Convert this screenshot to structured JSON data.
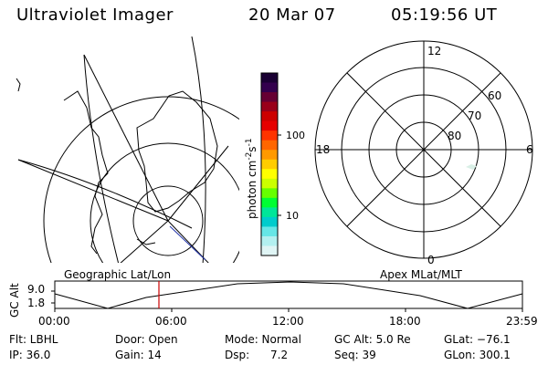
{
  "header": {
    "title": "Ultraviolet Imager",
    "date": "20 Mar 07",
    "time": "05:19:56 UT"
  },
  "colorbar": {
    "unit": "photon cm",
    "unit_exp1": "-2",
    "unit_s": "s",
    "unit_exp2": "-1",
    "ticks": [
      "100",
      "10"
    ],
    "colors": [
      "#1a0033",
      "#33004d",
      "#660033",
      "#99001a",
      "#cc0000",
      "#e60000",
      "#ff3300",
      "#ff6600",
      "#ff9900",
      "#ffcc00",
      "#ffff00",
      "#ccff00",
      "#66ff00",
      "#00ff33",
      "#00e699",
      "#00cccc",
      "#66e6e6",
      "#b3f0f0",
      "#e0f5f5"
    ]
  },
  "polar": {
    "mlt_labels": [
      "12",
      "18",
      "6",
      "0"
    ],
    "lat_labels": [
      "60",
      "70",
      "80"
    ]
  },
  "orbit": {
    "y_label": "GC Alt",
    "y_ticks": [
      "9.0",
      "1.8"
    ],
    "left_caption": "Geographic Lat/Lon",
    "right_caption": "Apex MLat/MLT",
    "x_ticks": [
      "00:00",
      "06:00",
      "12:00",
      "18:00",
      "23:59"
    ]
  },
  "info": {
    "flt": "Flt: LBHL",
    "door": "Door: Open",
    "mode": "Mode: Normal",
    "gc_alt": "GC Alt: 5.0 Re",
    "glat": "GLat: −76.1",
    "ip": "IP: 36.0",
    "gain": "Gain: 14",
    "dsp": "Dsp:      7.2",
    "seq": "Seq: 39",
    "glon": "GLon: 300.1"
  }
}
